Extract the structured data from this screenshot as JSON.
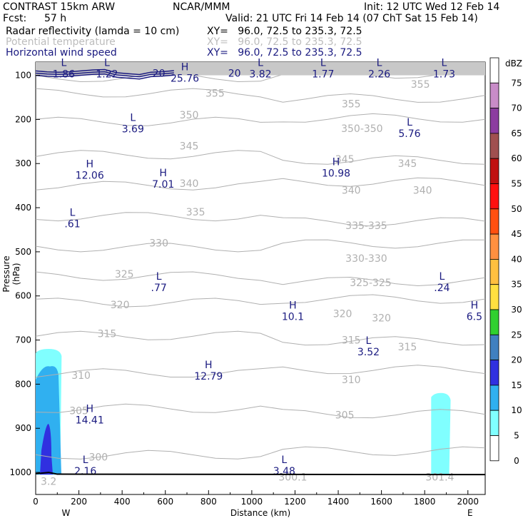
{
  "header": {
    "model": "CONTRAST 15km ARW",
    "org": "NCAR/MMM",
    "init": "Init: 12 UTC Wed 12 Feb 14",
    "fcst_label": "Fcst:",
    "fcst_value": "57 h",
    "valid": "Valid: 21 UTC Fri 14 Feb 14 (07 ChT Sat 15 Feb 14)",
    "line1_name": "Radar reflectivity (lamda = 10 cm)",
    "line1_xy": "XY=   96.0, 72.5 to 235.3, 72.5",
    "line2_name": "Potential temperature",
    "line2_xy": "XY=   96.0, 72.5 to 235.3, 72.5",
    "line3_name": "Horizontal wind speed",
    "line3_xy": "XY=   96.0, 72.5 to 235.3, 72.5"
  },
  "colors": {
    "theta": "#b0b0b0",
    "wind": "#1a1a80",
    "ground": "#000000"
  },
  "chart_data": {
    "type": "heatmap",
    "title": "Radar reflectivity / Potential temperature / Horizontal wind speed cross-section",
    "xlabel": "Distance (km)",
    "ylabel": "Pressure (hPa)",
    "xlim": [
      0,
      2080
    ],
    "ylim": [
      1050,
      70
    ],
    "x_ticks": [
      0,
      200,
      400,
      600,
      800,
      1000,
      1200,
      1400,
      1600,
      1800,
      2000
    ],
    "y_ticks": [
      100,
      200,
      300,
      400,
      500,
      600,
      700,
      800,
      900,
      1000
    ],
    "x_end_labels": {
      "left": "W",
      "right": "E"
    },
    "colorbar": {
      "unit": "dBZ",
      "levels": [
        75,
        70,
        65,
        60,
        55,
        50,
        45,
        40,
        35,
        30,
        25,
        20,
        15,
        10,
        5,
        0
      ],
      "colors": [
        "#ffffff",
        "#c88cc8",
        "#8c3ca0",
        "#a05050",
        "#c01010",
        "#ff1010",
        "#ff5010",
        "#ff9040",
        "#ffc040",
        "#ffe040",
        "#30d030",
        "#4080c0",
        "#3030e0",
        "#30b0f0",
        "#80ffff",
        "#ffffff"
      ]
    },
    "theta_labels": [
      {
        "text": "355",
        "x": 830,
        "p": 140
      },
      {
        "text": "355",
        "x": 1460,
        "p": 165
      },
      {
        "text": "355",
        "x": 1780,
        "p": 120
      },
      {
        "text": "350",
        "x": 710,
        "p": 190
      },
      {
        "text": "350-350",
        "x": 1510,
        "p": 220
      },
      {
        "text": "345",
        "x": 710,
        "p": 260
      },
      {
        "text": "345",
        "x": 1430,
        "p": 290
      },
      {
        "text": "345",
        "x": 1720,
        "p": 300
      },
      {
        "text": "340",
        "x": 710,
        "p": 345
      },
      {
        "text": "340",
        "x": 1460,
        "p": 360
      },
      {
        "text": "340",
        "x": 1790,
        "p": 360
      },
      {
        "text": "335",
        "x": 740,
        "p": 410
      },
      {
        "text": "335-335",
        "x": 1530,
        "p": 440
      },
      {
        "text": "330",
        "x": 570,
        "p": 480
      },
      {
        "text": "330-330",
        "x": 1530,
        "p": 515
      },
      {
        "text": "325",
        "x": 410,
        "p": 550
      },
      {
        "text": "325-325",
        "x": 1550,
        "p": 570
      },
      {
        "text": "320",
        "x": 390,
        "p": 620
      },
      {
        "text": "320",
        "x": 1420,
        "p": 640
      },
      {
        "text": "320",
        "x": 1600,
        "p": 650
      },
      {
        "text": "315",
        "x": 330,
        "p": 685
      },
      {
        "text": "315",
        "x": 1460,
        "p": 700
      },
      {
        "text": "315",
        "x": 1720,
        "p": 715
      },
      {
        "text": "310",
        "x": 210,
        "p": 780
      },
      {
        "text": "310",
        "x": 1460,
        "p": 790
      },
      {
        "text": "305",
        "x": 200,
        "p": 860
      },
      {
        "text": "305",
        "x": 1430,
        "p": 870
      },
      {
        "text": "300",
        "x": 290,
        "p": 965
      },
      {
        "text": "300.1",
        "x": 1190,
        "p": 1010
      },
      {
        "text": "301.4",
        "x": 1870,
        "p": 1010
      },
      {
        "text": "3.2",
        "x": 60,
        "p": 1020
      }
    ],
    "extrema": [
      {
        "type": "L",
        "value": "1.86",
        "x": 130,
        "p": 85
      },
      {
        "type": "L",
        "value": "1.22",
        "x": 330,
        "p": 85
      },
      {
        "type": "H",
        "value": "25.76",
        "x": 690,
        "p": 95
      },
      {
        "type": "L",
        "value": "3.82",
        "x": 1040,
        "p": 85
      },
      {
        "type": "L",
        "value": "1.77",
        "x": 1330,
        "p": 85
      },
      {
        "type": "L",
        "value": "2.26",
        "x": 1590,
        "p": 85
      },
      {
        "type": "L",
        "value": "1.73",
        "x": 1890,
        "p": 85
      },
      {
        "type": "L",
        "value": "3.69",
        "x": 450,
        "p": 210
      },
      {
        "type": "L",
        "value": "5.76",
        "x": 1730,
        "p": 220
      },
      {
        "type": "H",
        "value": "12.06",
        "x": 250,
        "p": 315
      },
      {
        "type": "H",
        "value": "7.01",
        "x": 590,
        "p": 335
      },
      {
        "type": "H",
        "value": "10.98",
        "x": 1390,
        "p": 310
      },
      {
        "type": "L",
        "value": ".61",
        "x": 170,
        "p": 425
      },
      {
        "type": "L",
        "value": ".77",
        "x": 570,
        "p": 570
      },
      {
        "type": "H",
        "value": "10.1",
        "x": 1190,
        "p": 635
      },
      {
        "type": "L",
        "value": ".24",
        "x": 1880,
        "p": 570
      },
      {
        "type": "H",
        "value": "6.5",
        "x": 2030,
        "p": 635
      },
      {
        "type": "L",
        "value": "3.52",
        "x": 1540,
        "p": 715
      },
      {
        "type": "H",
        "value": "12.79",
        "x": 800,
        "p": 770
      },
      {
        "type": "H",
        "value": "14.41",
        "x": 250,
        "p": 870
      },
      {
        "type": "L",
        "value": "2.16",
        "x": 230,
        "p": 985
      },
      {
        "type": "L",
        "value": "3.48",
        "x": 1150,
        "p": 985
      }
    ],
    "wind_labels": [
      {
        "text": "20",
        "x": 570,
        "p": 95
      },
      {
        "text": "20",
        "x": 920,
        "p": 95
      }
    ],
    "reflectivity_cells": [
      {
        "name": "west-cell",
        "x": [
          0,
          120
        ],
        "p_top": 720,
        "dbz_max": 15
      },
      {
        "name": "east-cell",
        "x": [
          1830,
          1920
        ],
        "p_top": 820,
        "dbz_max": 5
      }
    ],
    "ground_p": 1005
  }
}
